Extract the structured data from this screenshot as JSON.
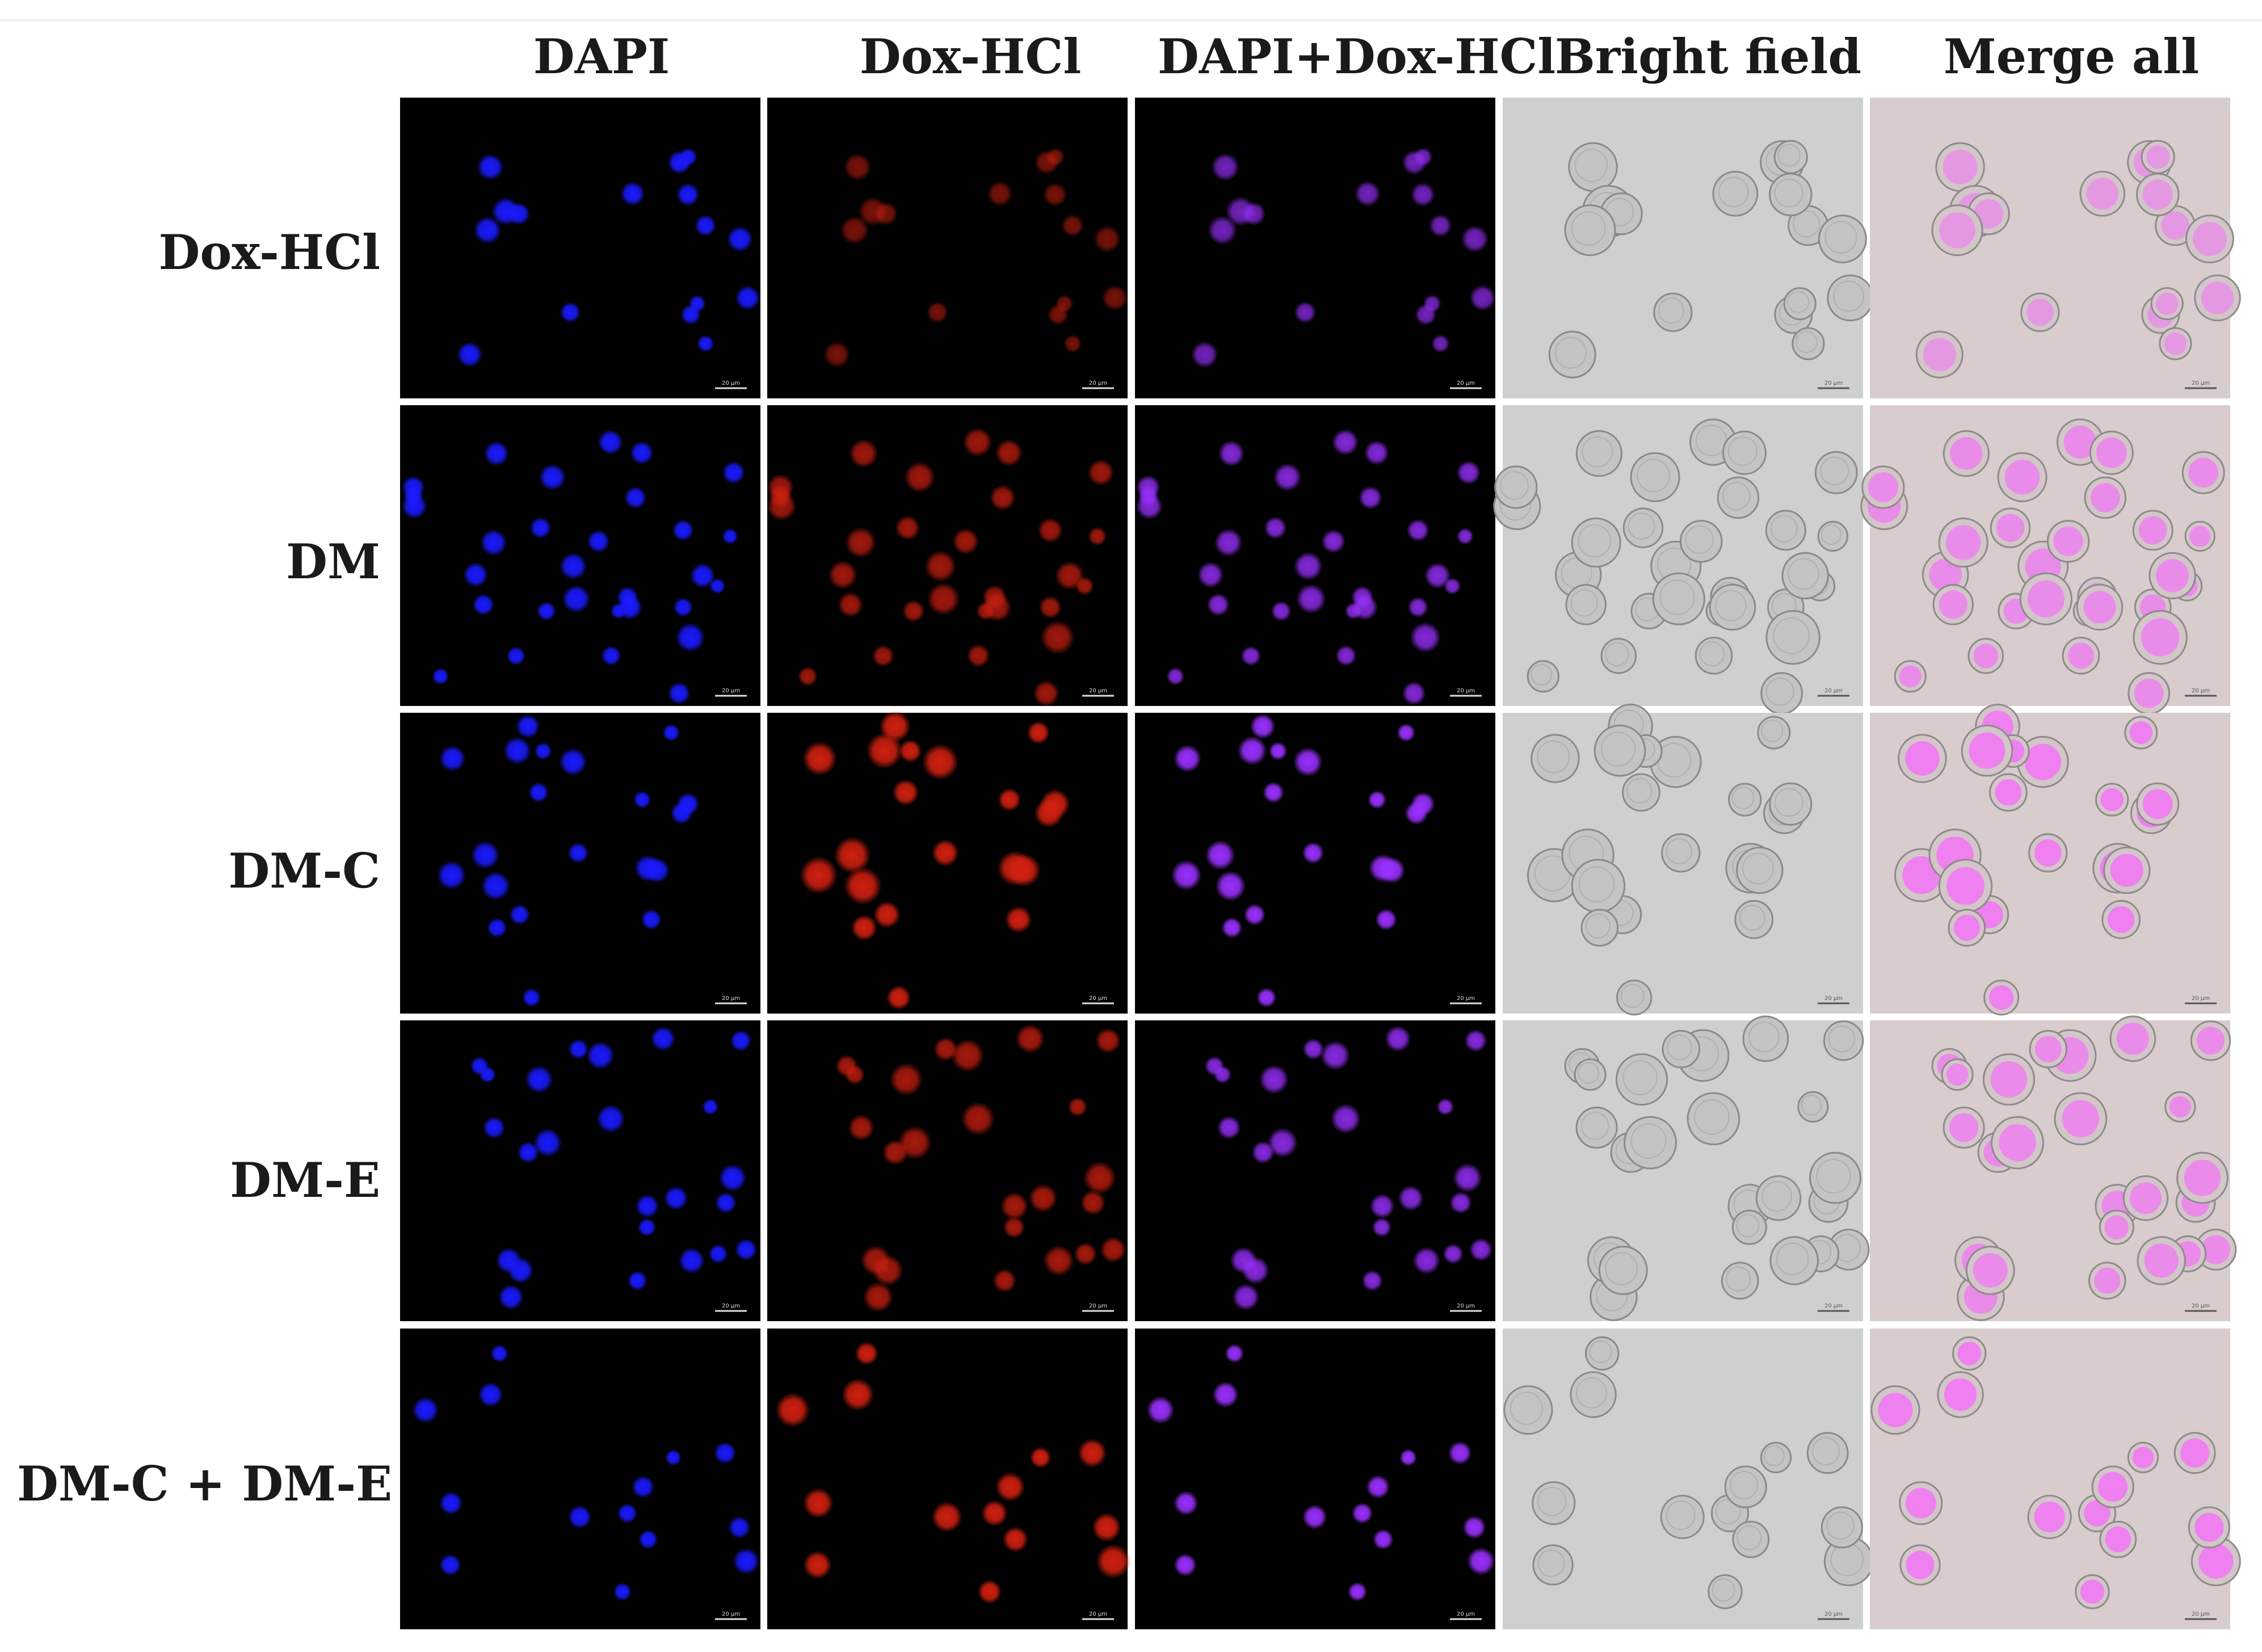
{
  "columns": [
    "DAPI",
    "Dox-HCl",
    "DAPI+Dox-HCl",
    "Bright field",
    "Merge all"
  ],
  "rows": [
    "Dox-HCl",
    "DM",
    "DM-C",
    "DM-E",
    "DM-C + DM-E"
  ],
  "scale_bar_label": "20 μm",
  "colors": {
    "dapi": "#1a1aff",
    "dox": "#d02010",
    "overlay_dapi_dox": "#9a30ff",
    "bright_field_bg": "#cfcfcf",
    "merge_cell": "#f07cf2",
    "fluor_bg": "#000000"
  },
  "dox_intensity_by_row": [
    0.35,
    0.65,
    1.0,
    0.7,
    1.0
  ]
}
